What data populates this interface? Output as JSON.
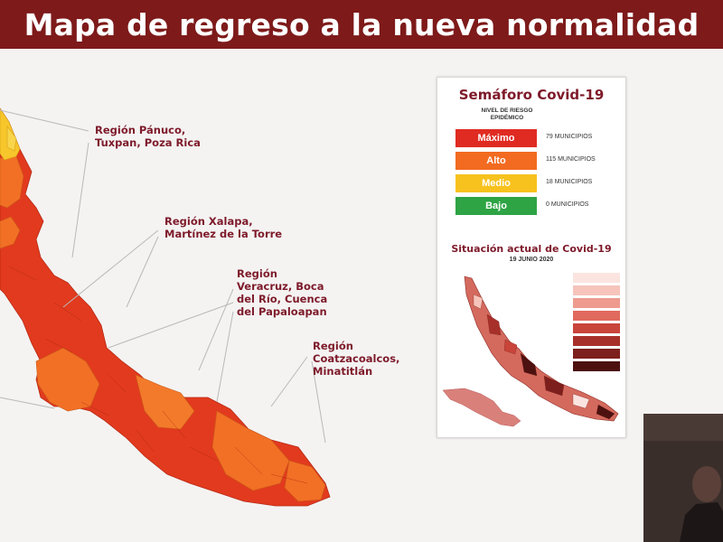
{
  "header": {
    "title": "Mapa de regreso a la nueva normalidad"
  },
  "regions": [
    {
      "id": "panuco",
      "lines": [
        "Región Pánuco,",
        "Tuxpan, Poza Rica"
      ]
    },
    {
      "id": "xalapa",
      "lines": [
        "Región Xalapa,",
        "Martínez de la Torre"
      ]
    },
    {
      "id": "veracruz",
      "lines": [
        "Región",
        "Veracruz, Boca",
        "del Río, Cuenca",
        "del Papaloapan"
      ]
    },
    {
      "id": "coatzacoalcos",
      "lines": [
        "Región",
        "Coatzacoalcos,",
        "Minatitlán"
      ]
    }
  ],
  "semaforo": {
    "title": "Semáforo Covid-19",
    "nivel_label": [
      "NIVEL DE RIESGO",
      "EPIDÉMICO"
    ],
    "levels": [
      {
        "name": "Máximo",
        "count": "79 MUNICIPIOS",
        "color": "#e02b22"
      },
      {
        "name": "Alto",
        "count": "115 MUNICIPIOS",
        "color": "#f26b21"
      },
      {
        "name": "Medio",
        "count": "18 MUNICIPIOS",
        "color": "#f7c21e"
      },
      {
        "name": "Bajo",
        "count": "0 MUNICIPIOS",
        "color": "#2ea444"
      }
    ]
  },
  "situacion": {
    "title": "Situación actual de Covid-19",
    "date": "19 JUNIO 2020",
    "legend": [
      {
        "label": "",
        "color": "#fbe4e0"
      },
      {
        "label": "",
        "color": "#f6c4bb"
      },
      {
        "label": "",
        "color": "#ee9a8e"
      },
      {
        "label": "",
        "color": "#e06a5d"
      },
      {
        "label": "",
        "color": "#c9443a"
      },
      {
        "label": "",
        "color": "#a8302a"
      },
      {
        "label": "",
        "color": "#7d1f1c"
      },
      {
        "label": "",
        "color": "#4d1210"
      }
    ]
  },
  "colors": {
    "header_bg": "#7e1a1a",
    "maximo": "#e02b22",
    "alto": "#f26b21",
    "medio": "#f7c21e"
  }
}
